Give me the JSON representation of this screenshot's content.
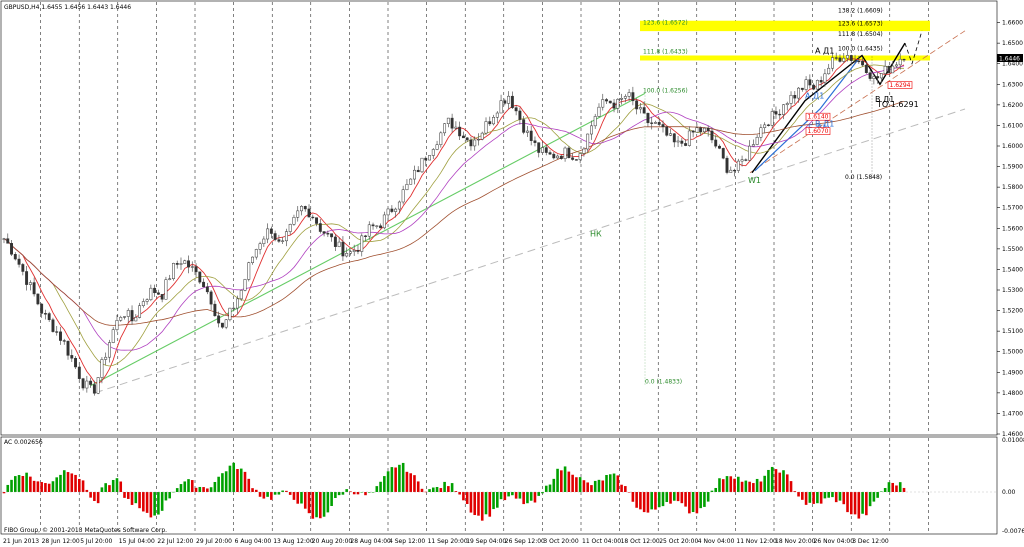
{
  "window": {
    "title": "GBPUSD,H4 1.6455 1.6456 1.6443 1.6446"
  },
  "chart_data": [
    {
      "type": "candlestick",
      "title": "GBPUSD,H4 1.6455 1.6456 1.6443 1.6446",
      "ylim": [
        1.46,
        1.67
      ],
      "y_ticks": [
        "1.6600",
        "1.6500",
        "1.6400",
        "1.6300",
        "1.6200",
        "1.6100",
        "1.6000",
        "1.5900",
        "1.5800",
        "1.5700",
        "1.5600",
        "1.5500",
        "1.5400",
        "1.5300",
        "1.5200",
        "1.5100",
        "1.5000",
        "1.4900",
        "1.4800",
        "1.4700",
        "1.4600"
      ],
      "x_ticks": [
        "21 Jun 2013",
        "28 Jun 12:00",
        "5 Jul 20:00",
        "15 Jul 04:00",
        "22 Jul 12:00",
        "29 Jul 20:00",
        "6 Aug 04:00",
        "13 Aug 12:00",
        "20 Aug 20:00",
        "28 Aug 04:00",
        "4 Sep 12:00",
        "11 Sep 20:00",
        "19 Sep 04:00",
        "26 Sep 12:00",
        "3 Oct 20:00",
        "11 Oct 04:00",
        "18 Oct 12:00",
        "25 Oct 20:00",
        "4 Nov 04:00",
        "11 Nov 12:00",
        "18 Nov 20:00",
        "26 Nov 04:00",
        "3 Dec 12:00"
      ],
      "current_price": "1.6446",
      "price_path": [
        1.555,
        1.548,
        1.538,
        1.528,
        1.518,
        1.512,
        1.505,
        1.495,
        1.485,
        1.48,
        1.495,
        1.51,
        1.52,
        1.515,
        1.525,
        1.53,
        1.528,
        1.54,
        1.545,
        1.54,
        1.535,
        1.525,
        1.51,
        1.52,
        1.53,
        1.545,
        1.555,
        1.56,
        1.55,
        1.56,
        1.57,
        1.568,
        1.56,
        1.555,
        1.55,
        1.548,
        1.552,
        1.56,
        1.562,
        1.568,
        1.575,
        1.582,
        1.59,
        1.598,
        1.605,
        1.612,
        1.608,
        1.602,
        1.605,
        1.612,
        1.62,
        1.625,
        1.615,
        1.605,
        1.598,
        1.595,
        1.596,
        1.597,
        1.595,
        1.605,
        1.618,
        1.622,
        1.62,
        1.625,
        1.618,
        1.612,
        1.61,
        1.605,
        1.6,
        1.603,
        1.608,
        1.607,
        1.6,
        1.59,
        1.588,
        1.595,
        1.605,
        1.612,
        1.615,
        1.622,
        1.625,
        1.63,
        1.628,
        1.636,
        1.642,
        1.645,
        1.642,
        1.64,
        1.632,
        1.636,
        1.64,
        1.6446
      ],
      "fibonacci_levels": [
        {
          "label": "138.2 (1.6609)"
        },
        {
          "label": "123.6 (1.6573)"
        },
        {
          "label": "111.8 (1.6504)"
        },
        {
          "label": "100.0 (1.6435)"
        },
        {
          "label": "0.0 (1.5848)"
        },
        {
          "label": "100.0 (1.6256)"
        },
        {
          "label": "111.8 (1.6433)"
        },
        {
          "label": "123.6 (1.6572)"
        },
        {
          "label": "0.0 (1.4833)"
        }
      ],
      "price_tags": [
        "1.6294",
        "1.6140",
        "1.6070"
      ],
      "annotations": [
        "А Д1",
        "А Д1",
        "В Д1",
        "В Д1",
        "Б Д1",
        "ТО 1.6291",
        "W1",
        "НК"
      ]
    },
    {
      "type": "bar",
      "title": "AC 0.002656",
      "ylim": [
        -0.00764,
        0.01008
      ],
      "y_ticks": [
        "0.01008",
        "0.00",
        "-0.00764"
      ],
      "colors": {
        "up": "#00a000",
        "down": "#e00000"
      }
    }
  ],
  "footer": {
    "copyright": "FIBO Group, © 2001-2013 MetaQuotes Software Corp."
  }
}
